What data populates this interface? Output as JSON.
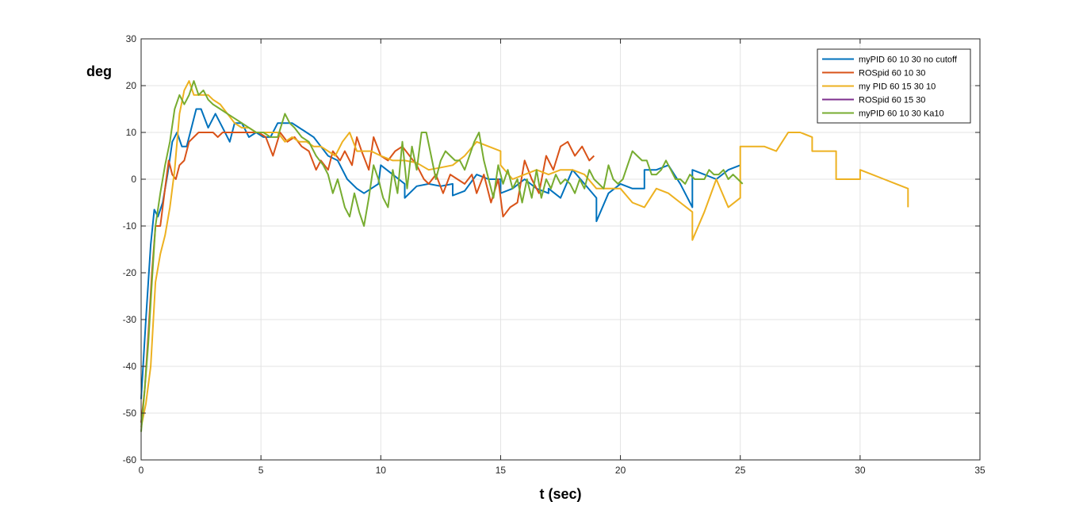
{
  "chart_data": {
    "type": "line",
    "title": "",
    "xlabel": "t (sec)",
    "ylabel": "deg",
    "xlim": [
      0,
      35
    ],
    "ylim": [
      -60,
      30
    ],
    "xticks": [
      0,
      5,
      10,
      15,
      20,
      25,
      30,
      35
    ],
    "yticks": [
      -60,
      -50,
      -40,
      -30,
      -20,
      -10,
      0,
      10,
      20,
      30
    ],
    "grid": true,
    "legend_position": "top-right",
    "series": [
      {
        "name": "myPID 60 10 30 no cutoff",
        "color": "#0072BD",
        "x": [
          0,
          0.2,
          0.4,
          0.55,
          0.7,
          0.9,
          1.1,
          1.3,
          1.5,
          1.7,
          1.9,
          2.1,
          2.3,
          2.5,
          2.8,
          3.1,
          3.4,
          3.7,
          3.9,
          4.2,
          4.5,
          4.8,
          5.1,
          5.4,
          5.7,
          6.0,
          6.3,
          6.6,
          6.9,
          7.2,
          7.5,
          7.8,
          8.2,
          8.6,
          9.0,
          9.3,
          9.6,
          9.9,
          10.0,
          10.5,
          11.0,
          11.0,
          11.5,
          12.0,
          12.5,
          13.0,
          13.0,
          13.5,
          14.0,
          14.5,
          15.0,
          15.0,
          15.5,
          16.0,
          16.5,
          17.0,
          17.0,
          17.5,
          18.0,
          18.5,
          19.0,
          19.0,
          19.5,
          20.0,
          20.5,
          21.0,
          21.0,
          21.5,
          22.0,
          22.5,
          23.0,
          23.0,
          23.5,
          24.0,
          24.5,
          25.0
        ],
        "y": [
          -47,
          -30,
          -14,
          -6.5,
          -8,
          -5,
          1,
          8,
          10,
          7,
          7,
          11,
          15,
          15,
          11,
          14,
          11,
          8,
          12,
          12,
          9,
          10,
          9,
          9,
          12,
          12,
          12,
          11,
          10,
          9,
          7,
          5,
          4,
          0,
          -2,
          -3,
          -2,
          -1,
          3,
          1,
          -1,
          -4,
          -1.5,
          -1,
          -1.5,
          -1,
          -3.5,
          -2.5,
          1,
          0,
          0,
          -3,
          -2,
          0,
          -2,
          -3,
          -2,
          -4,
          2,
          -1,
          -4,
          -9,
          -3,
          -1,
          -2,
          -2,
          2,
          2,
          3,
          -1,
          -6,
          2,
          1,
          0,
          2,
          3
        ]
      },
      {
        "name": "ROSpid 60 10 30",
        "color": "#D95319",
        "x": [
          0,
          0.15,
          0.3,
          0.45,
          0.6,
          0.8,
          1.0,
          1.15,
          1.3,
          1.45,
          1.6,
          1.8,
          2.0,
          2.2,
          2.4,
          2.6,
          2.8,
          3.0,
          3.2,
          3.4,
          3.6,
          3.8,
          4.0,
          4.3,
          4.6,
          4.9,
          5.2,
          5.5,
          5.8,
          6.1,
          6.4,
          6.7,
          7.0,
          7.3,
          7.5,
          7.8,
          8.0,
          8.3,
          8.5,
          8.8,
          9.0,
          9.2,
          9.5,
          9.7,
          10.0,
          10.3,
          10.6,
          10.9,
          11.2,
          11.5,
          11.8,
          12.0,
          12.3,
          12.6,
          12.9,
          13.2,
          13.5,
          13.8,
          14.0,
          14.3,
          14.6,
          14.9,
          15.1,
          15.4,
          15.7,
          16.0,
          16.3,
          16.6,
          16.9,
          17.2,
          17.5,
          17.8,
          18.1,
          18.4,
          18.7,
          18.9
        ],
        "y": [
          -52,
          -45,
          -33,
          -20,
          -10,
          -10,
          -2,
          4,
          1,
          0,
          3,
          4,
          8,
          9,
          10,
          10,
          10,
          10,
          9,
          10,
          10,
          10,
          10,
          10,
          10,
          10,
          9,
          5,
          10,
          8,
          9,
          7,
          6,
          2,
          4,
          2,
          6,
          4,
          6,
          3,
          9,
          6,
          2,
          9,
          5,
          4,
          6,
          7,
          5,
          3,
          0,
          -1,
          1,
          -3,
          1,
          0,
          -1,
          1,
          -3,
          1,
          -5,
          0,
          -8,
          -6,
          -5,
          4,
          0,
          -3,
          5,
          2,
          7,
          8,
          5,
          7,
          4,
          5
        ]
      },
      {
        "name": "my PID 60 15 30 10",
        "color": "#EDB120",
        "x": [
          0,
          0.2,
          0.4,
          0.6,
          0.8,
          1.0,
          1.2,
          1.4,
          1.6,
          1.8,
          2.0,
          2.2,
          2.4,
          2.6,
          2.8,
          3.0,
          3.3,
          3.6,
          3.9,
          4.2,
          4.5,
          4.8,
          5.1,
          5.4,
          5.7,
          6.0,
          6.3,
          6.6,
          6.9,
          7.2,
          7.5,
          7.8,
          8.1,
          8.4,
          8.7,
          9.0,
          9.3,
          9.6,
          10.0,
          10.5,
          11.0,
          11.5,
          12.0,
          12.5,
          13.0,
          13.5,
          14.0,
          14.5,
          15.0,
          15.0,
          15.5,
          16.0,
          16.5,
          17.0,
          17.5,
          18.0,
          18.5,
          19.0,
          19.5,
          20.0,
          20.5,
          21.0,
          21.5,
          22.0,
          22.5,
          23.0,
          23.0,
          23.5,
          24.0,
          24.5,
          25.0,
          25.0,
          25.5,
          26.0,
          26.5,
          27.0,
          27.5,
          28.0,
          28.0,
          28.5,
          29.0,
          29.0,
          29.5,
          30.0,
          30.0,
          30.5,
          31.0,
          31.5,
          32.0,
          32.0
        ],
        "y": [
          -53,
          -48,
          -40,
          -22,
          -16,
          -12,
          -6,
          2,
          14,
          19,
          21,
          18,
          18,
          18,
          18,
          17,
          16,
          14,
          12,
          11,
          11,
          10,
          10,
          10,
          10,
          8,
          9,
          8,
          8,
          7,
          7,
          6,
          5,
          8,
          10,
          6,
          6,
          6,
          5,
          4,
          4,
          3.5,
          2,
          2.5,
          3,
          5,
          8,
          7,
          6,
          3,
          0,
          1,
          2,
          1,
          2,
          2,
          1,
          -2,
          -2,
          -2,
          -5,
          -6,
          -2,
          -3,
          -5,
          -7,
          -13,
          -7,
          0,
          -6,
          -4,
          7,
          7,
          7,
          6,
          10,
          10,
          9,
          6,
          6,
          6,
          0,
          0,
          0,
          2,
          1,
          0,
          -1,
          -2,
          -6
        ]
      },
      {
        "name": "ROSpid 60 15 30",
        "color": "#7E2F8E",
        "x": [],
        "y": []
      },
      {
        "name": "myPID 60 10 30 Ka10",
        "color": "#77AC30",
        "x": [
          0,
          0.15,
          0.3,
          0.45,
          0.6,
          0.8,
          1.0,
          1.2,
          1.4,
          1.6,
          1.8,
          2.0,
          2.2,
          2.4,
          2.6,
          2.8,
          3.0,
          3.3,
          3.6,
          3.9,
          4.2,
          4.5,
          4.8,
          5.1,
          5.4,
          5.7,
          6.0,
          6.2,
          6.4,
          6.7,
          7.0,
          7.3,
          7.6,
          7.8,
          8.0,
          8.2,
          8.5,
          8.7,
          8.9,
          9.1,
          9.3,
          9.5,
          9.7,
          9.9,
          10.1,
          10.3,
          10.5,
          10.7,
          10.9,
          11.1,
          11.3,
          11.5,
          11.7,
          11.9,
          12.1,
          12.3,
          12.5,
          12.7,
          12.9,
          13.1,
          13.3,
          13.5,
          13.7,
          13.9,
          14.1,
          14.3,
          14.5,
          14.7,
          14.9,
          15.1,
          15.3,
          15.5,
          15.7,
          15.9,
          16.1,
          16.3,
          16.5,
          16.7,
          16.9,
          17.1,
          17.3,
          17.5,
          17.7,
          17.9,
          18.1,
          18.3,
          18.5,
          18.7,
          18.9,
          19.1,
          19.3,
          19.5,
          19.7,
          19.9,
          20.1,
          20.3,
          20.5,
          20.7,
          20.9,
          21.1,
          21.3,
          21.5,
          21.7,
          21.9,
          22.1,
          22.3,
          22.5,
          22.7,
          22.9,
          23.1,
          23.3,
          23.5,
          23.7,
          23.9,
          24.1,
          24.3,
          24.5,
          24.7,
          24.9,
          25.1
        ],
        "y": [
          -54,
          -45,
          -35,
          -22,
          -10,
          -3,
          3,
          8,
          15,
          18,
          16,
          18,
          21,
          18,
          19,
          17,
          16,
          15,
          14,
          13,
          12,
          11,
          10,
          10,
          9,
          9,
          14,
          12,
          11,
          9,
          8,
          5,
          3,
          1,
          -3,
          0,
          -6,
          -8,
          -3,
          -7,
          -10,
          -4,
          3,
          0,
          -4,
          -6,
          2,
          -3,
          8,
          -2,
          7,
          2,
          10,
          10,
          5,
          0,
          4,
          6,
          5,
          4,
          4,
          2,
          5,
          8,
          10,
          4,
          0,
          -4,
          3,
          -1,
          2,
          -2,
          0,
          -5,
          0,
          -4,
          2,
          -4,
          0,
          -2,
          1,
          -1,
          0,
          -1,
          -3,
          0,
          -2,
          2,
          0,
          -1,
          -2,
          3,
          0,
          -1,
          0,
          3,
          6,
          5,
          4,
          4,
          1,
          1,
          2,
          4,
          2,
          0,
          0,
          -1,
          1,
          0,
          0,
          0,
          2,
          1,
          1,
          2,
          0,
          1,
          0,
          -1
        ]
      }
    ]
  }
}
